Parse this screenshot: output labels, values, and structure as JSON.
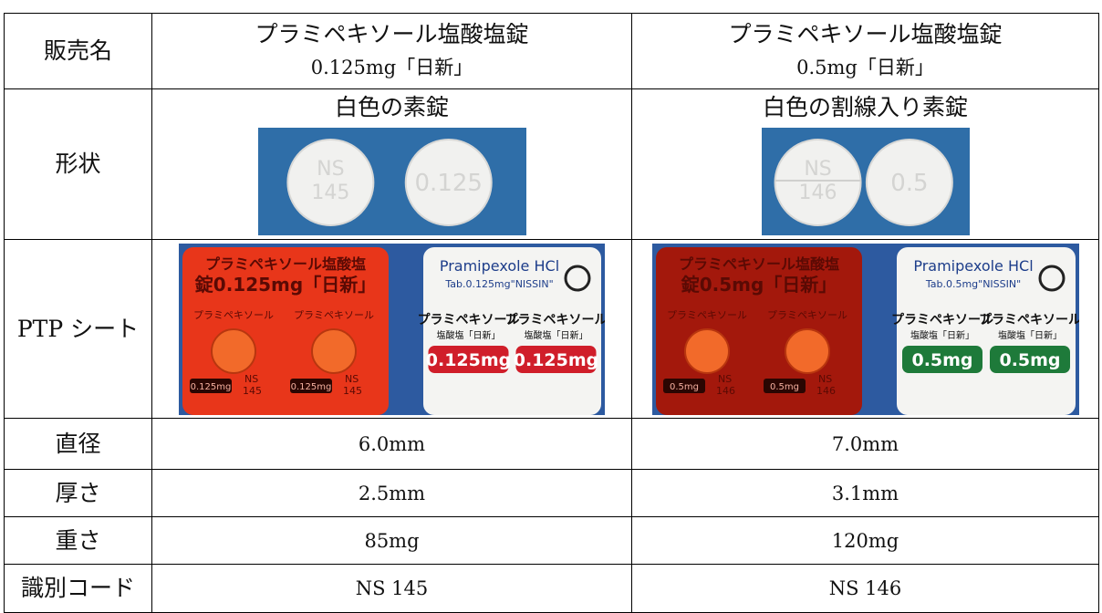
{
  "table": {
    "rows": [
      {
        "label": "販売名",
        "cells": [
          [
            "プラミペキソール塩酸塩錠",
            "0.125mg「日新」"
          ],
          [
            "プラミペキソール塩酸塩錠",
            "0.5mg「日新」"
          ]
        ]
      },
      {
        "label": "形状",
        "cells": [
          "白色の素錠",
          "白色の割線入り素錠"
        ]
      },
      {
        "label": "PTP シート"
      },
      {
        "label": "直径",
        "cells": [
          "6.0mm",
          "7.0mm"
        ]
      },
      {
        "label": "厚さ",
        "cells": [
          "2.5mm",
          "3.1mm"
        ]
      },
      {
        "label": "重さ",
        "cells": [
          "85mg",
          "120mg"
        ]
      },
      {
        "label": "識別コード",
        "cells": [
          "NS 145",
          "NS 146"
        ]
      }
    ]
  },
  "tablets": [
    {
      "front": [
        "NS",
        "145"
      ],
      "back": "0.125"
    },
    {
      "front": [
        "NS",
        "146"
      ],
      "back": "0.5"
    }
  ],
  "ptp": [
    {
      "front_name": [
        "プラミペキソール塩酸塩",
        "錠0.125mg「日新」"
      ],
      "front_small": "プラミペキソール",
      "front_code": "0.125mg",
      "front_id": [
        "NS",
        "145"
      ],
      "brand": "Pramipexole HCl",
      "brand_sub": "Tab.0.125mg\"NISSIN\"",
      "back_name": "プラミペキソール",
      "back_sub": "塩酸塩「日新」",
      "strength": "0.125mg"
    },
    {
      "front_name": [
        "プラミペキソール塩酸塩",
        "錠0.5mg「日新」"
      ],
      "front_small": "プラミペキソール",
      "front_code": "0.5mg",
      "front_id": [
        "NS",
        "146"
      ],
      "brand": "Pramipexole HCl",
      "brand_sub": "Tab.0.5mg\"NISSIN\"",
      "back_name": "プラミペキソール",
      "back_sub": "塩酸塩「日新」",
      "strength": "0.5mg"
    }
  ]
}
